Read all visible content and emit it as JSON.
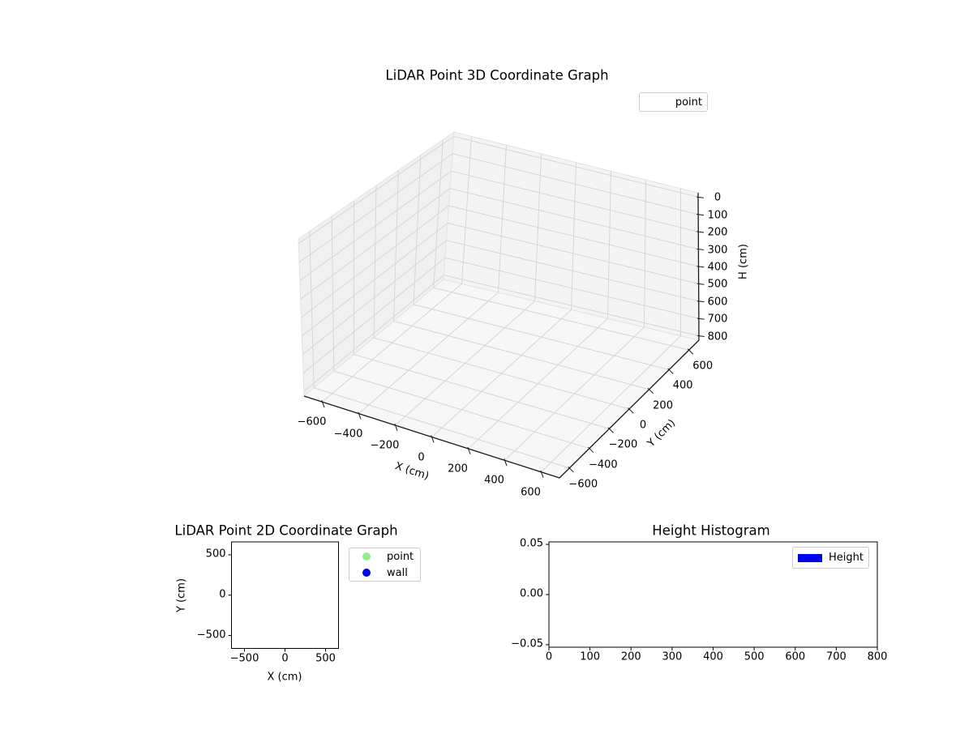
{
  "figure": {
    "background": "#ffffff",
    "text_color": "#000000"
  },
  "colors": {
    "pane_left_wall": "#f0f0f0",
    "pane_right_wall": "#f4f4f4",
    "pane_floor": "#f7f7f7",
    "pane_edge": "#e3e3e3",
    "grid_line": "#d5d5d5",
    "axis_line": "#1a1a1a",
    "spine": "#000000",
    "legend_border": "#cccccc"
  },
  "chart_data": [
    {
      "id": "plot3d",
      "type": "scatter3d",
      "title": "LiDAR Point 3D Coordinate Graph",
      "xlabel": "X (cm)",
      "ylabel": "Y (cm)",
      "zlabel": "H (cm)",
      "xlim": [
        -700,
        700
      ],
      "ylim": [
        -700,
        700
      ],
      "zlim": [
        0,
        800
      ],
      "z_axis_inverted": true,
      "xticks": [
        -600,
        -400,
        -200,
        0,
        200,
        400,
        600
      ],
      "yticks": [
        -600,
        -400,
        -200,
        0,
        200,
        400,
        600
      ],
      "zticks": [
        0,
        100,
        200,
        300,
        400,
        500,
        600,
        700,
        800
      ],
      "grid": true,
      "series": [
        {
          "name": "point",
          "points": []
        }
      ],
      "legend": [
        {
          "label": "point",
          "marker": "none"
        }
      ],
      "legend_position": "upper right"
    },
    {
      "id": "plot2d",
      "type": "scatter",
      "title": "LiDAR Point 2D Coordinate Graph",
      "xlabel": "X (cm)",
      "ylabel": "Y (cm)",
      "xlim": [
        -660,
        660
      ],
      "ylim": [
        -660,
        660
      ],
      "xticks": [
        -500,
        0,
        500
      ],
      "yticks": [
        500,
        0,
        -500
      ],
      "grid": false,
      "series": [
        {
          "name": "point",
          "color": "#90ee90",
          "points": []
        },
        {
          "name": "wall",
          "color": "#0000ff",
          "points": []
        }
      ],
      "legend": [
        {
          "label": "point",
          "color": "#90ee90",
          "marker": "circle"
        },
        {
          "label": "wall",
          "color": "#0000ff",
          "marker": "circle"
        }
      ],
      "legend_position": "outside right"
    },
    {
      "id": "histogram",
      "type": "bar",
      "title": "Height Histogram",
      "xlabel": "",
      "ylabel": "",
      "xlim": [
        0,
        800
      ],
      "ylim": [
        -0.0525,
        0.0525
      ],
      "xticks": [
        0,
        100,
        200,
        300,
        400,
        500,
        600,
        700,
        800
      ],
      "yticks": [
        0.05,
        0.0,
        -0.05
      ],
      "ytick_decimals": 2,
      "grid": false,
      "values": [],
      "legend": [
        {
          "label": "Height",
          "color": "#0000ff",
          "marker": "rect"
        }
      ],
      "legend_position": "upper right"
    }
  ]
}
